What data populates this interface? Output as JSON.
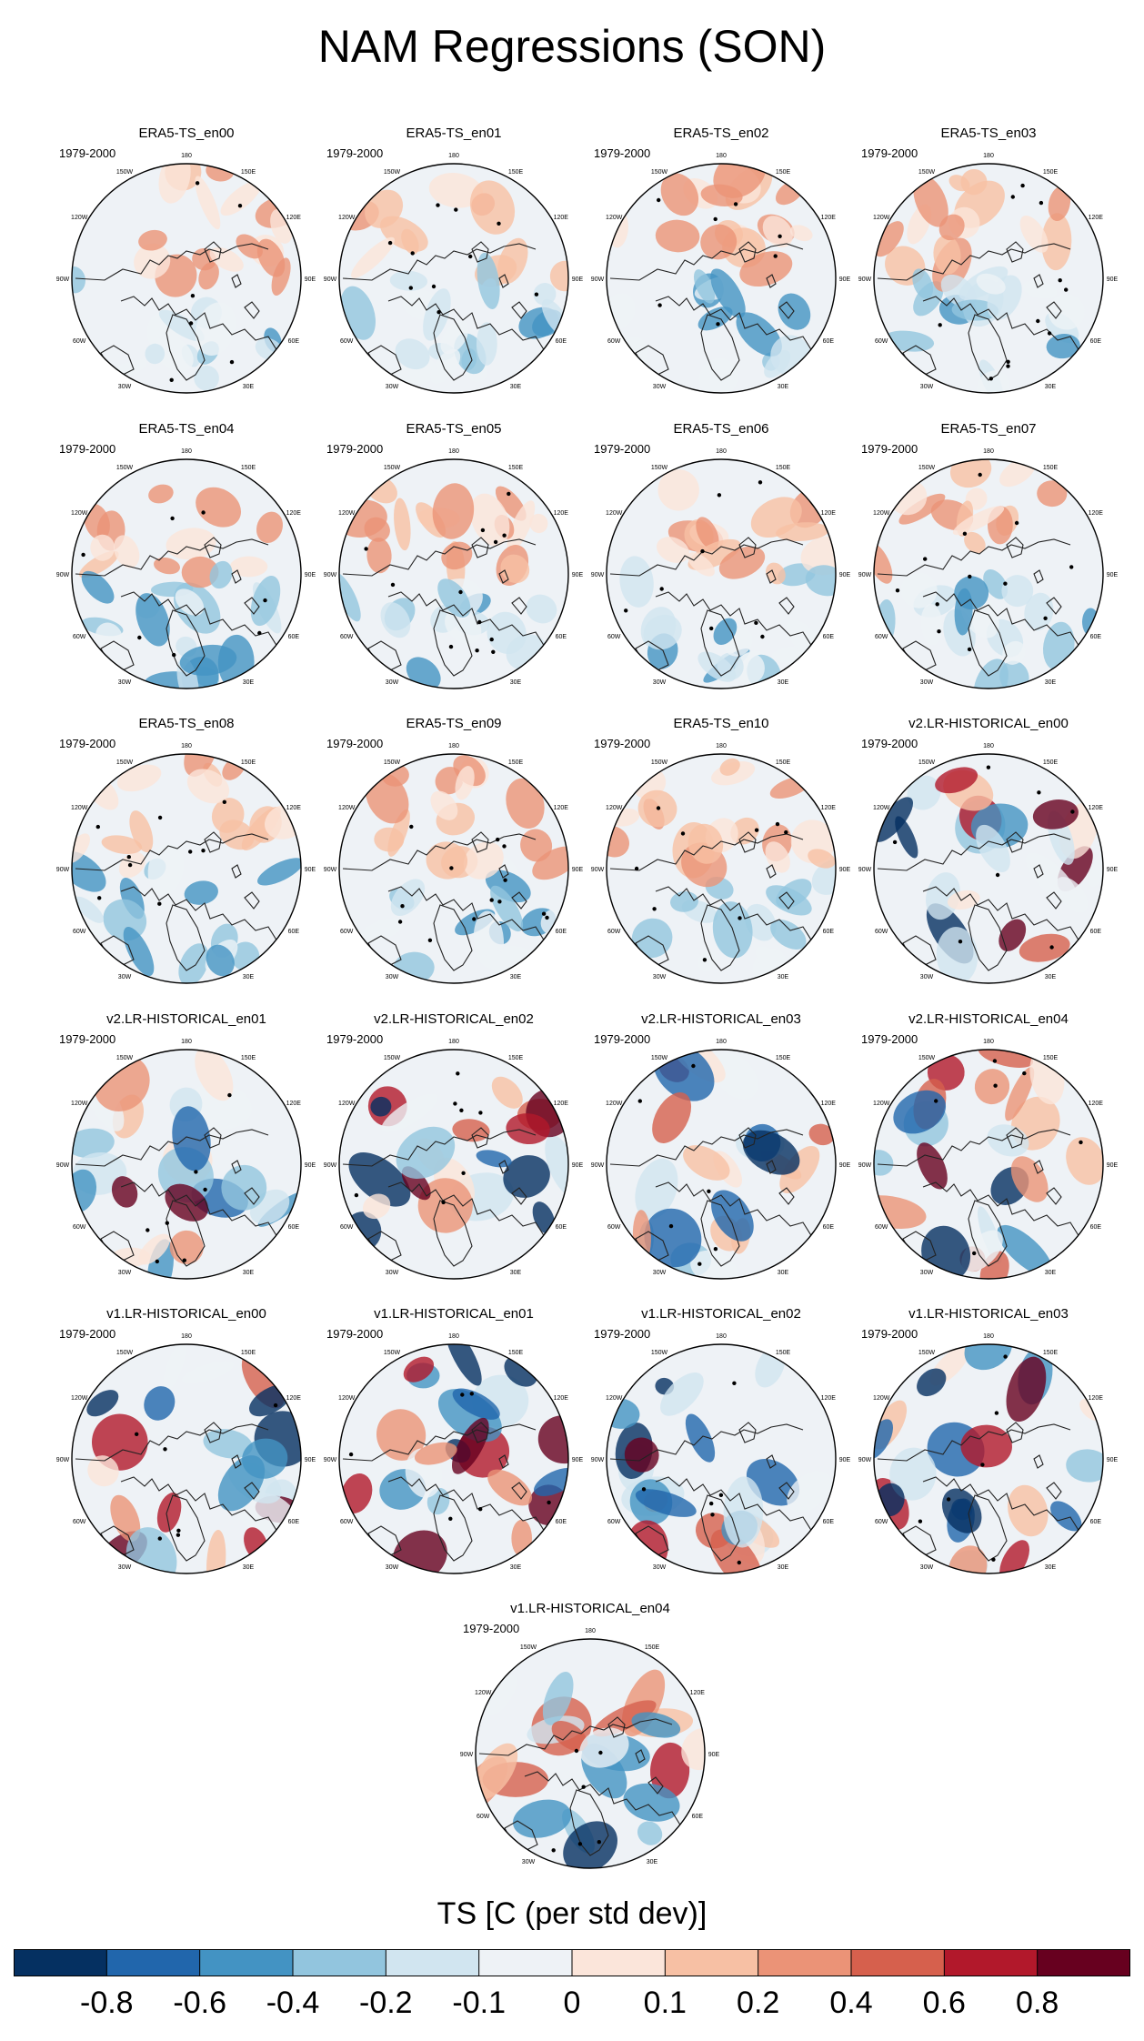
{
  "page_title": "NAM Regressions (SON)",
  "chart_data": {
    "type": "map-grid",
    "title": "NAM Regressions (SON)",
    "period_label": "1979-2000",
    "projection": "north polar stereographic",
    "panels": [
      {
        "name": "ERA5-TS_en00",
        "period": "1979-2000"
      },
      {
        "name": "ERA5-TS_en01",
        "period": "1979-2000"
      },
      {
        "name": "ERA5-TS_en02",
        "period": "1979-2000"
      },
      {
        "name": "ERA5-TS_en03",
        "period": "1979-2000"
      },
      {
        "name": "ERA5-TS_en04",
        "period": "1979-2000"
      },
      {
        "name": "ERA5-TS_en05",
        "period": "1979-2000"
      },
      {
        "name": "ERA5-TS_en06",
        "period": "1979-2000"
      },
      {
        "name": "ERA5-TS_en07",
        "period": "1979-2000"
      },
      {
        "name": "ERA5-TS_en08",
        "period": "1979-2000"
      },
      {
        "name": "ERA5-TS_en09",
        "period": "1979-2000"
      },
      {
        "name": "ERA5-TS_en10",
        "period": "1979-2000"
      },
      {
        "name": "v2.LR-HISTORICAL_en00",
        "period": "1979-2000"
      },
      {
        "name": "v2.LR-HISTORICAL_en01",
        "period": "1979-2000"
      },
      {
        "name": "v2.LR-HISTORICAL_en02",
        "period": "1979-2000"
      },
      {
        "name": "v2.LR-HISTORICAL_en03",
        "period": "1979-2000"
      },
      {
        "name": "v2.LR-HISTORICAL_en04",
        "period": "1979-2000"
      },
      {
        "name": "v1.LR-HISTORICAL_en00",
        "period": "1979-2000"
      },
      {
        "name": "v1.LR-HISTORICAL_en01",
        "period": "1979-2000"
      },
      {
        "name": "v1.LR-HISTORICAL_en02",
        "period": "1979-2000"
      },
      {
        "name": "v1.LR-HISTORICAL_en03",
        "period": "1979-2000"
      },
      {
        "name": "v1.LR-HISTORICAL_en04",
        "period": "1979-2000"
      }
    ],
    "longitude_labels": [
      "180",
      "150E",
      "120E",
      "90E",
      "60E",
      "30E",
      "0",
      "30W",
      "60W",
      "90W",
      "120W",
      "150W"
    ],
    "colorbar": {
      "title": "TS [C (per std dev)]",
      "boundaries": [
        "-0.8",
        "-0.6",
        "-0.4",
        "-0.2",
        "-0.1",
        "0",
        "0.1",
        "0.2",
        "0.4",
        "0.6",
        "0.8"
      ],
      "colors": [
        "#053061",
        "#2166ac",
        "#4393c3",
        "#92c5de",
        "#d1e5f0",
        "#eef2f6",
        "#fbe5da",
        "#f7c0a4",
        "#eb9377",
        "#d6604d",
        "#b2182b",
        "#67001f"
      ]
    }
  }
}
